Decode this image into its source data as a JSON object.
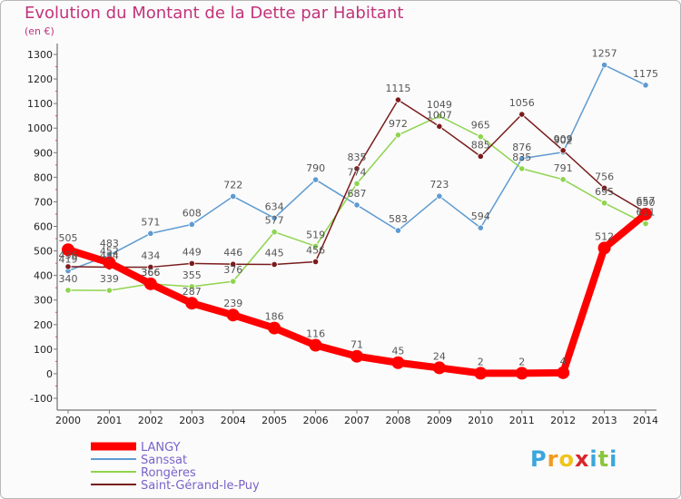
{
  "title": "Evolution du Montant de la Dette par Habitant",
  "unit_label": "(en €)",
  "logo": {
    "text": "Proxiti",
    "letters": [
      "P",
      "r",
      "o",
      "x",
      "i",
      "t",
      "i"
    ],
    "colors": [
      "#3aa6dc",
      "#f29a1f",
      "#f0c419",
      "#d8262c",
      "#3aa6dc",
      "#8bc53f",
      "#3aa6dc"
    ]
  },
  "chart_data": {
    "type": "line",
    "title": "Evolution du Montant de la Dette par Habitant",
    "ylabel": "(en €)",
    "xlabel": "",
    "x": [
      "2000",
      "2001",
      "2002",
      "2003",
      "2004",
      "2005",
      "2006",
      "2007",
      "2008",
      "2009",
      "2010",
      "2011",
      "2012",
      "2013",
      "2014"
    ],
    "ylim": [
      -100,
      1300
    ],
    "yticks": [
      -100,
      0,
      100,
      200,
      300,
      400,
      500,
      600,
      700,
      800,
      900,
      1000,
      1100,
      1200,
      1300
    ],
    "grid": false,
    "legend_position": "bottom-left",
    "series": [
      {
        "name": "LANGY",
        "color": "#ff0000",
        "values": [
          505,
          452,
          366,
          287,
          239,
          186,
          116,
          71,
          45,
          24,
          2,
          2,
          4,
          512,
          650
        ],
        "labels": [
          "505",
          "452",
          "366",
          "287",
          "239",
          "186",
          "116",
          "71",
          "45",
          "24",
          "2",
          "2",
          "4",
          "512",
          "650"
        ]
      },
      {
        "name": "Sanssat",
        "color": "#5e9bd1",
        "values": [
          419,
          483,
          571,
          608,
          722,
          634,
          790,
          687,
          583,
          723,
          594,
          876,
          902,
          1257,
          1175
        ],
        "labels": [
          "419",
          "483",
          "571",
          "608",
          "722",
          "634",
          "790",
          "687",
          "583",
          "723",
          "594",
          "876",
          "902",
          "1257",
          "1175"
        ]
      },
      {
        "name": "Rongères",
        "color": "#8fd44e",
        "values": [
          340,
          339,
          366,
          355,
          376,
          577,
          519,
          774,
          972,
          1049,
          965,
          835,
          791,
          695,
          611
        ],
        "labels": [
          "340",
          "339",
          "366",
          "355",
          "376",
          "577",
          "519",
          "774",
          "972",
          "1049",
          "965",
          "835",
          "791",
          "695",
          "611"
        ]
      },
      {
        "name": "Saint-Gérand-le-Puy",
        "color": "#7a1c1c",
        "values": [
          436,
          434,
          434,
          449,
          446,
          445,
          456,
          835,
          1115,
          1007,
          885,
          1056,
          909,
          756,
          657
        ],
        "labels": [
          "436",
          "434",
          "434",
          "449",
          "446",
          "445",
          "456",
          "835",
          "1115",
          "1007",
          "885",
          "1056",
          "909",
          "756",
          "657"
        ]
      }
    ]
  }
}
